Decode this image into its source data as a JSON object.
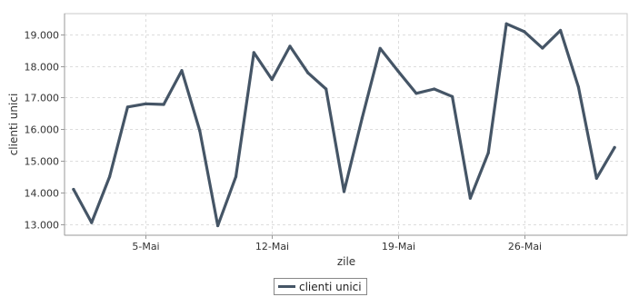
{
  "chart_data": {
    "type": "line",
    "title": "",
    "xlabel": "zile",
    "ylabel": "clienti unici",
    "ylim": [
      12650,
      19650
    ],
    "y_ticks": [
      13000,
      14000,
      15000,
      16000,
      17000,
      18000,
      19000
    ],
    "y_tick_labels": [
      "13.000",
      "14.000",
      "15.000",
      "16.000",
      "17.000",
      "18.000",
      "19.000"
    ],
    "x_ticks": [
      5,
      12,
      19,
      26
    ],
    "x_tick_labels": [
      "5-Mai",
      "12-Mai",
      "19-Mai",
      "26-Mai"
    ],
    "x_range": [
      0.5,
      31.7
    ],
    "grid": true,
    "legend_position": "bottom-center",
    "series": [
      {
        "name": "clienti unici",
        "color": "#455566",
        "x": [
          1,
          2,
          3,
          4,
          5,
          6,
          7,
          8,
          9,
          10,
          11,
          12,
          13,
          14,
          15,
          16,
          17,
          18,
          19,
          20,
          21,
          22,
          23,
          24,
          25,
          26,
          27,
          28,
          29,
          30,
          31
        ],
        "values": [
          14100,
          13050,
          14500,
          16700,
          16800,
          16780,
          17850,
          15950,
          12950,
          14500,
          18420,
          17570,
          18620,
          17780,
          17270,
          14030,
          16350,
          18550,
          17830,
          17130,
          17270,
          17030,
          13820,
          15250,
          19330,
          19080,
          18560,
          19120,
          17330,
          14450,
          15420
        ]
      }
    ]
  }
}
